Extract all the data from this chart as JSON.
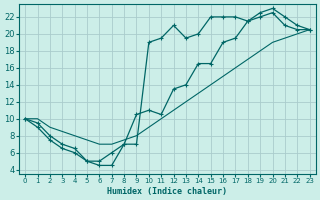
{
  "xlabel": "Humidex (Indice chaleur)",
  "background_color": "#cceee8",
  "grid_color": "#aacccc",
  "line_color": "#006666",
  "xlim": [
    -0.5,
    23.5
  ],
  "ylim": [
    3.5,
    23.5
  ],
  "xticks": [
    0,
    1,
    2,
    3,
    4,
    5,
    6,
    7,
    8,
    9,
    10,
    11,
    12,
    13,
    14,
    15,
    16,
    17,
    18,
    19,
    20,
    21,
    22,
    23
  ],
  "yticks": [
    4,
    6,
    8,
    10,
    12,
    14,
    16,
    18,
    20,
    22
  ],
  "line1_x": [
    0,
    1,
    2,
    3,
    4,
    5,
    6,
    7,
    8,
    9,
    10,
    11,
    12,
    13,
    14,
    15,
    16,
    17,
    18,
    19,
    20,
    21,
    22,
    23
  ],
  "line1_y": [
    10,
    9,
    7.5,
    6.5,
    6,
    5,
    5,
    6,
    7,
    7,
    19,
    19.5,
    21,
    19.5,
    20,
    22,
    22,
    22,
    21.5,
    22.5,
    23,
    22,
    21,
    20.5
  ],
  "line2_x": [
    0,
    1,
    2,
    3,
    4,
    5,
    6,
    7,
    8,
    9,
    10,
    11,
    12,
    13,
    14,
    15,
    16,
    17,
    18,
    19,
    20,
    21,
    22,
    23
  ],
  "line2_y": [
    10,
    10,
    9,
    8.5,
    8,
    7.5,
    7,
    7,
    7.5,
    8,
    9,
    10,
    11,
    12,
    13,
    14,
    15,
    16,
    17,
    18,
    19,
    19.5,
    20,
    20.5
  ],
  "line3_x": [
    0,
    1,
    2,
    3,
    4,
    5,
    6,
    7,
    8,
    9,
    10,
    11,
    12,
    13,
    14,
    15,
    16,
    17,
    18,
    19,
    20,
    21,
    22,
    23
  ],
  "line3_y": [
    10,
    9.5,
    8,
    7,
    6.5,
    5,
    4.5,
    4.5,
    7,
    10.5,
    11,
    10.5,
    13.5,
    14,
    16.5,
    16.5,
    19,
    19.5,
    21.5,
    22,
    22.5,
    21,
    20.5,
    20.5
  ]
}
